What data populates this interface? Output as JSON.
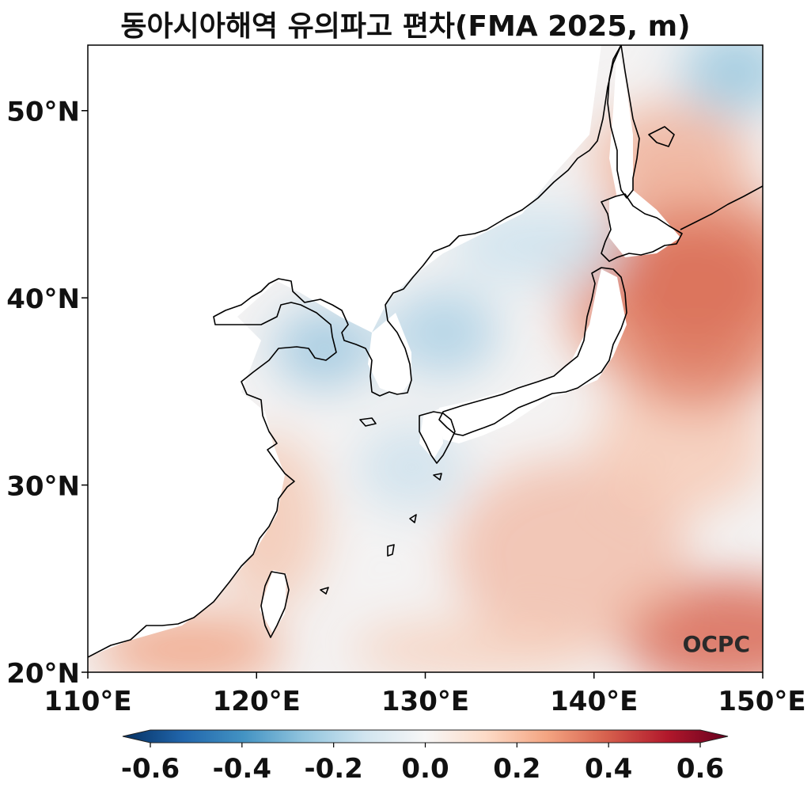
{
  "title": "동아시아해역 유의파고 편차(FMA 2025, m)",
  "map": {
    "lon_range": [
      110,
      150
    ],
    "lat_range": [
      20,
      53.5
    ],
    "lon_ticks": [
      {
        "value": 110,
        "label": "110°E"
      },
      {
        "value": 120,
        "label": "120°E"
      },
      {
        "value": 130,
        "label": "130°E"
      },
      {
        "value": 140,
        "label": "140°E"
      },
      {
        "value": 150,
        "label": "150°E"
      }
    ],
    "lat_ticks": [
      {
        "value": 20,
        "label": "20°N"
      },
      {
        "value": 30,
        "label": "30°N"
      },
      {
        "value": 40,
        "label": "40°N"
      },
      {
        "value": 50,
        "label": "50°N"
      }
    ],
    "variable": "significant wave height anomaly",
    "logo": "OCPC"
  },
  "colorbar": {
    "range": [
      -0.6,
      0.6
    ],
    "extend": "both",
    "colormap": "RdBu_r",
    "ticks": [
      {
        "value": -0.6,
        "label": "-0.6"
      },
      {
        "value": -0.4,
        "label": "-0.4"
      },
      {
        "value": -0.2,
        "label": "-0.2"
      },
      {
        "value": 0.0,
        "label": "0.0"
      },
      {
        "value": 0.2,
        "label": "0.2"
      },
      {
        "value": 0.4,
        "label": "0.4"
      },
      {
        "value": 0.6,
        "label": "0.6"
      }
    ],
    "colors": [
      "#053061",
      "#2166ac",
      "#4393c3",
      "#92c5de",
      "#d1e5f0",
      "#f7f7f7",
      "#fddbc7",
      "#f4a582",
      "#d6604d",
      "#b2182b",
      "#67001f"
    ]
  }
}
